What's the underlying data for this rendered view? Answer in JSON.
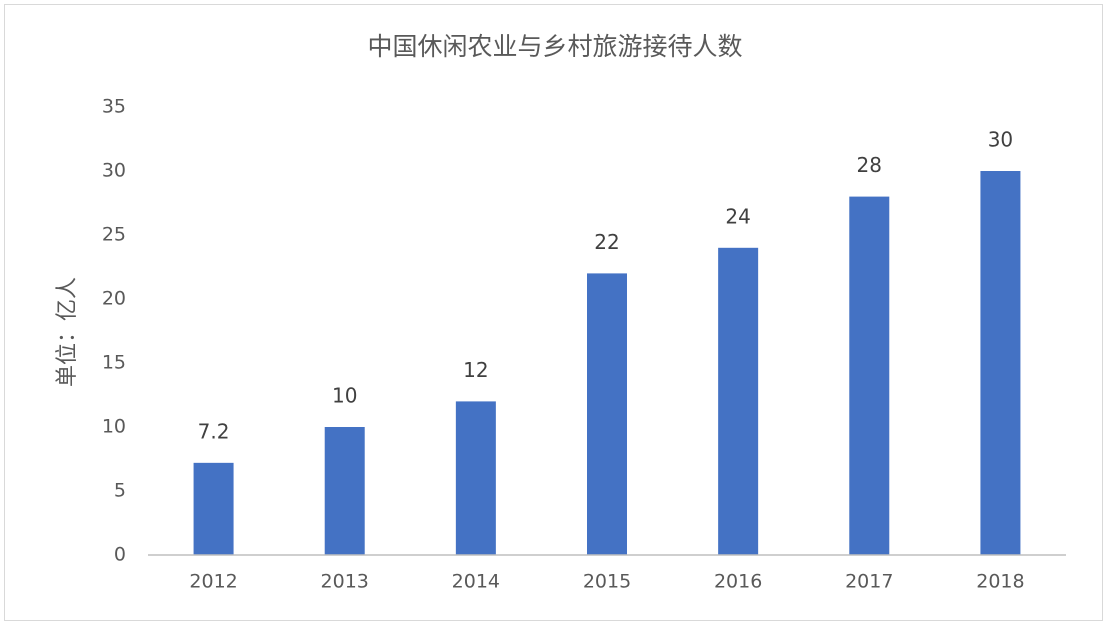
{
  "chart_data": {
    "type": "bar",
    "title": "中国休闲农业与乡村旅游接待人数",
    "y_label": "单位：亿人",
    "categories": [
      "2012",
      "2013",
      "2014",
      "2015",
      "2016",
      "2017",
      "2018"
    ],
    "values": [
      7.2,
      10,
      12,
      22,
      24,
      28,
      30
    ],
    "color": "#4472c4",
    "ylim": [
      0,
      35
    ],
    "yticks": [
      0,
      5,
      10,
      15,
      20,
      25,
      30,
      35
    ],
    "grid": false,
    "data_labels": true
  }
}
